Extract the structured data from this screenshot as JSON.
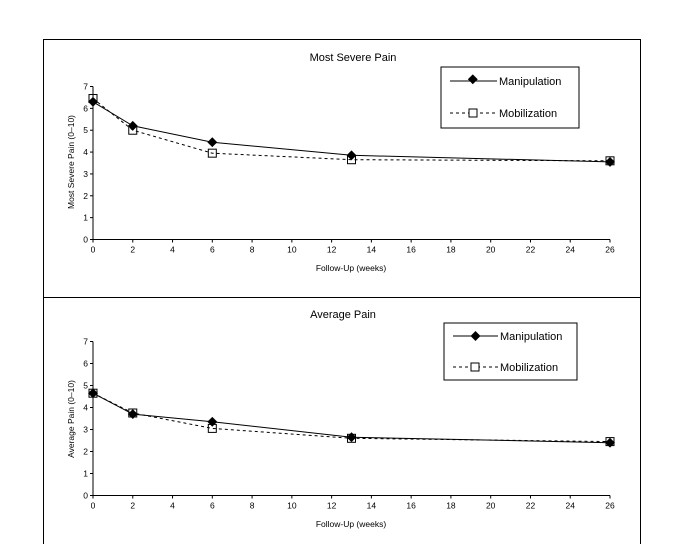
{
  "chart_data": [
    {
      "type": "line",
      "title": "Most Severe Pain",
      "xlabel": "Follow-Up (weeks)",
      "ylabel": "Most Severe Pain (0–10)",
      "xlim": [
        0,
        26
      ],
      "ylim": [
        0,
        7
      ],
      "xticks": [
        "0",
        "2",
        "4",
        "6",
        "8",
        "10",
        "12",
        "14",
        "16",
        "18",
        "20",
        "22",
        "24",
        "26"
      ],
      "yticks": [
        "0",
        "1",
        "2",
        "3",
        "4",
        "5",
        "6",
        "7"
      ],
      "legend_position": "top-right",
      "series": [
        {
          "name": "Manipulation",
          "style": "solid",
          "marker": "diamond",
          "x": [
            0,
            2,
            6,
            13,
            26
          ],
          "y": [
            6.3,
            5.2,
            4.45,
            3.85,
            3.55
          ]
        },
        {
          "name": "Mobilization",
          "style": "dashed",
          "marker": "square",
          "x": [
            0,
            2,
            6,
            13,
            26
          ],
          "y": [
            6.45,
            5.0,
            3.95,
            3.65,
            3.6
          ]
        }
      ]
    },
    {
      "type": "line",
      "title": "Average Pain",
      "xlabel": "Follow-Up (weeks)",
      "ylabel": "Average Pain (0–10)",
      "xlim": [
        0,
        26
      ],
      "ylim": [
        0,
        7
      ],
      "xticks": [
        "0",
        "2",
        "4",
        "6",
        "8",
        "10",
        "12",
        "14",
        "16",
        "18",
        "20",
        "22",
        "24",
        "26"
      ],
      "yticks": [
        "0",
        "1",
        "2",
        "3",
        "4",
        "5",
        "6",
        "7"
      ],
      "legend_position": "top-right",
      "series": [
        {
          "name": "Manipulation",
          "style": "solid",
          "marker": "diamond",
          "x": [
            0,
            2,
            6,
            13,
            26
          ],
          "y": [
            4.65,
            3.7,
            3.35,
            2.65,
            2.4
          ]
        },
        {
          "name": "Mobilization",
          "style": "dashed",
          "marker": "square",
          "x": [
            0,
            2,
            6,
            13,
            26
          ],
          "y": [
            4.65,
            3.75,
            3.05,
            2.6,
            2.45
          ]
        }
      ]
    }
  ]
}
